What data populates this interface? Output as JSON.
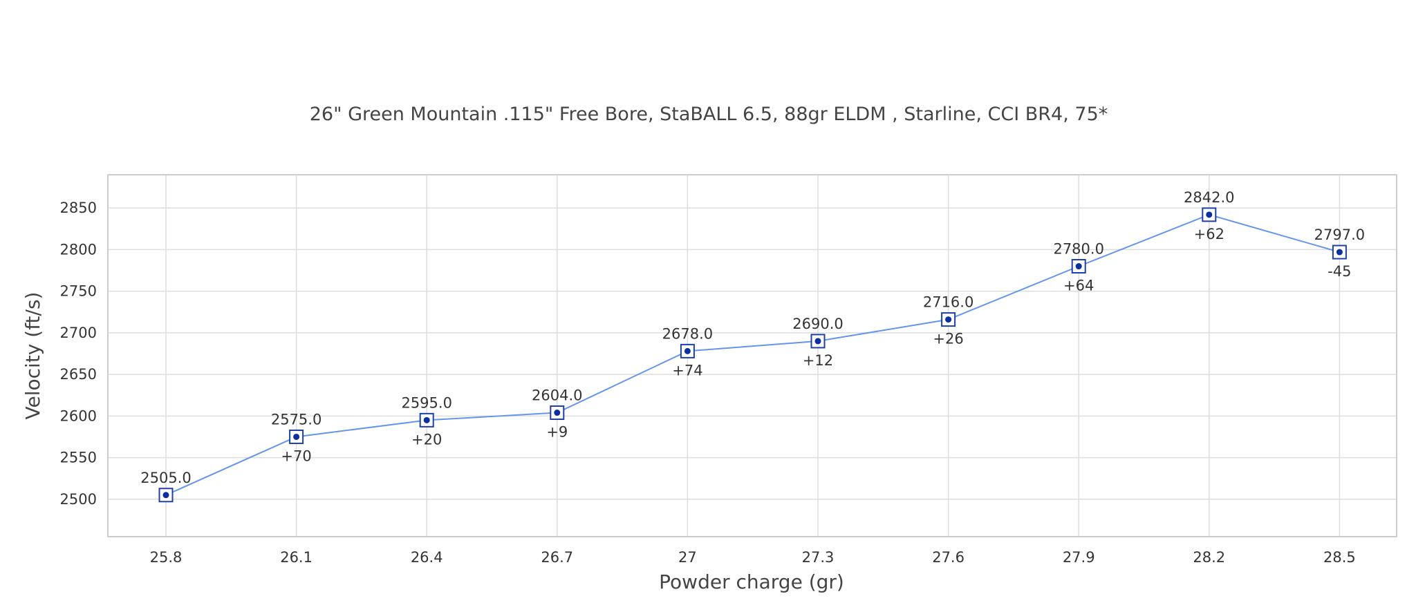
{
  "chart_data": {
    "type": "line",
    "title": "26\" Green Mountain .115\" Free Bore, StaBALL 6.5, 88gr ELDM , Starline, CCI BR4, 75*",
    "xlabel": "Powder charge (gr)",
    "ylabel": "Velocity (ft/s)",
    "categories": [
      "25.8",
      "26.1",
      "26.4",
      "26.7",
      "27",
      "27.3",
      "27.6",
      "27.9",
      "28.2",
      "28.5"
    ],
    "series": [
      {
        "values": [
          2505.0,
          2575.0,
          2595.0,
          2604.0,
          2678.0,
          2690.0,
          2716.0,
          2780.0,
          2842.0,
          2797.0
        ],
        "value_labels": [
          "2505.0",
          "2575.0",
          "2595.0",
          "2604.0",
          "2678.0",
          "2690.0",
          "2716.0",
          "2780.0",
          "2842.0",
          "2797.0"
        ],
        "delta_labels": [
          "",
          "+70",
          "+20",
          "+9",
          "+74",
          "+12",
          "+26",
          "+64",
          "+62",
          "-45"
        ]
      }
    ],
    "yticks": [
      2500,
      2550,
      2600,
      2650,
      2700,
      2750,
      2800,
      2850
    ],
    "ylim": [
      2455,
      2890
    ],
    "grid": true,
    "colors": {
      "line": "#6495ED",
      "marker": "#1F3FA8",
      "marker_dot": "#0A2FA0",
      "grid": "#DDDDDD",
      "frame": "#CCCCCC",
      "text": "#333333"
    }
  }
}
